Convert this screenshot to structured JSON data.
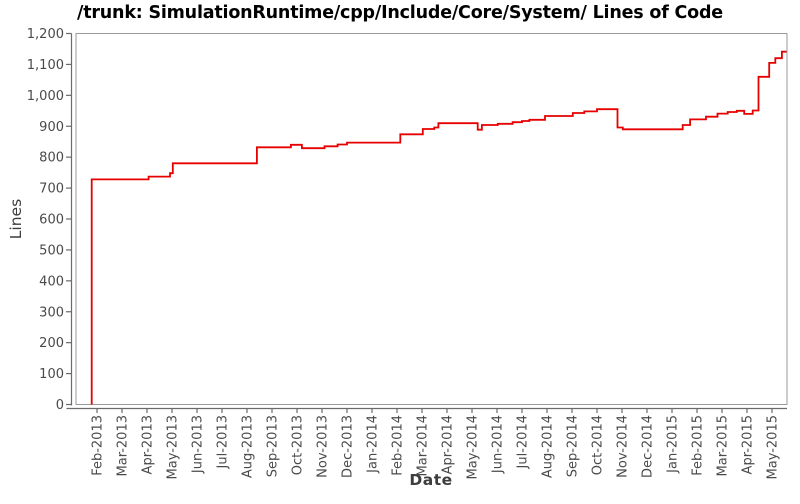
{
  "title": "/trunk: SimulationRuntime/cpp/Include/Core/System/ Lines of Code",
  "chart_data": {
    "type": "line",
    "style": "step-after",
    "title": "/trunk: SimulationRuntime/cpp/Include/Core/System/ Lines of Code",
    "xlabel": "Date",
    "ylabel": "Lines",
    "line_color": "#e60000",
    "grid": false,
    "legend": "none",
    "ylim": [
      0,
      1200
    ],
    "y_tick_step": 100,
    "y_tick_labels": [
      "0",
      "100",
      "200",
      "300",
      "400",
      "500",
      "600",
      "700",
      "800",
      "900",
      "1,000",
      "1,100",
      "1,200"
    ],
    "x_tick_labels": [
      "Feb-2013",
      "Mar-2013",
      "Apr-2013",
      "May-2013",
      "Jun-2013",
      "Jul-2013",
      "Aug-2013",
      "Sep-2013",
      "Oct-2013",
      "Nov-2013",
      "Dec-2013",
      "Jan-2014",
      "Feb-2014",
      "Mar-2014",
      "Apr-2014",
      "May-2014",
      "Jun-2014",
      "Jul-2014",
      "Aug-2014",
      "Sep-2014",
      "Oct-2014",
      "Nov-2014",
      "Dec-2014",
      "Jan-2015",
      "Feb-2015",
      "Mar-2015",
      "Apr-2015",
      "May-2015"
    ],
    "x_epoch_month": "2013-02",
    "series_start": [
      "2013-01-25",
      0
    ],
    "series_end_date": "2015-05-19",
    "points": [
      [
        "2013-01-25",
        728
      ],
      [
        "2013-04-03",
        737
      ],
      [
        "2013-04-29",
        748
      ],
      [
        "2013-05-02",
        780
      ],
      [
        "2013-08-13",
        832
      ],
      [
        "2013-09-24",
        840
      ],
      [
        "2013-10-07",
        829
      ],
      [
        "2013-11-04",
        835
      ],
      [
        "2013-11-20",
        841
      ],
      [
        "2013-12-01",
        847
      ],
      [
        "2014-02-05",
        874
      ],
      [
        "2014-03-02",
        891
      ],
      [
        "2014-03-16",
        896
      ],
      [
        "2014-03-21",
        910
      ],
      [
        "2014-05-08",
        889
      ],
      [
        "2014-05-13",
        904
      ],
      [
        "2014-06-02",
        908
      ],
      [
        "2014-06-20",
        913
      ],
      [
        "2014-07-01",
        917
      ],
      [
        "2014-07-10",
        921
      ],
      [
        "2014-07-29",
        933
      ],
      [
        "2014-09-02",
        943
      ],
      [
        "2014-09-16",
        948
      ],
      [
        "2014-10-01",
        955
      ],
      [
        "2014-10-26",
        896
      ],
      [
        "2014-11-02",
        890
      ],
      [
        "2015-01-14",
        904
      ],
      [
        "2015-01-23",
        922
      ],
      [
        "2015-02-12",
        931
      ],
      [
        "2015-02-26",
        941
      ],
      [
        "2015-03-08",
        946
      ],
      [
        "2015-03-19",
        950
      ],
      [
        "2015-03-28",
        940
      ],
      [
        "2015-04-08",
        951
      ],
      [
        "2015-04-15",
        1060
      ],
      [
        "2015-04-28",
        1105
      ],
      [
        "2015-05-05",
        1120
      ],
      [
        "2015-05-13",
        1141
      ]
    ]
  }
}
